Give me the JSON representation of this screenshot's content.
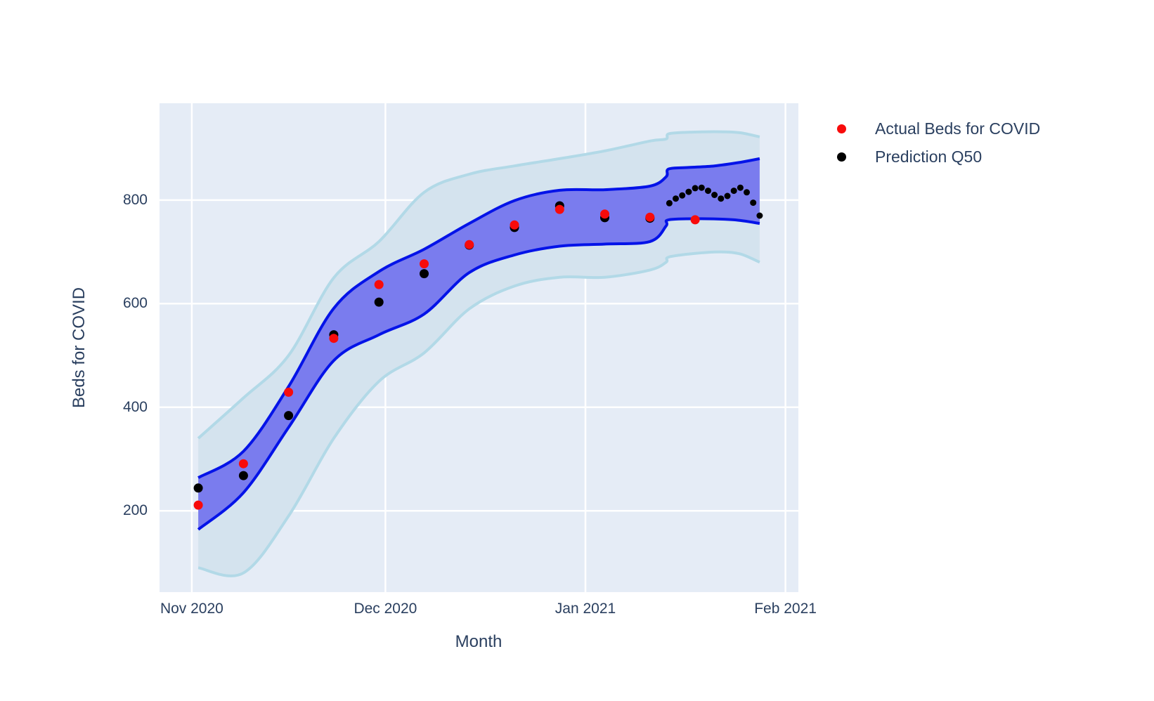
{
  "colors": {
    "paper_background": "#ffffff",
    "plot_background": "#e5ecf6",
    "gridline": "#ffffff",
    "text": "#2a3f5f",
    "actual_marker": "#f80b0b",
    "prediction_marker": "#000000",
    "inner_band_fill": "#7a7cee",
    "inner_band_line": "#0413e8",
    "outer_band_fill": "#d4e3ee",
    "outer_band_line": "#b2d9e7"
  },
  "chart_data": {
    "type": "scatter",
    "title": "",
    "xlabel": "Month",
    "ylabel": "Beds for COVID",
    "grid": true,
    "legend_position": "top-right-outside",
    "x_axis": {
      "tick_labels": [
        "Nov 2020",
        "Dec 2020",
        "Jan 2021",
        "Feb 2021"
      ],
      "tick_days_from_nov1": [
        0,
        30,
        61,
        92
      ],
      "range_days_from_nov1": [
        -5,
        94
      ]
    },
    "y_axis": {
      "tick_labels": [
        "200",
        "400",
        "600",
        "800"
      ],
      "tick_values": [
        200,
        400,
        600,
        800
      ],
      "range": [
        43,
        987
      ]
    },
    "legend": [
      {
        "label": "Actual Beds for COVID",
        "color": "#f80b0b"
      },
      {
        "label": "Prediction Q50",
        "color": "#000000"
      }
    ],
    "series": {
      "actual": {
        "name": "Actual Beds for COVID",
        "color": "#f80b0b",
        "points": [
          {
            "d": 1,
            "v": 211
          },
          {
            "d": 8,
            "v": 291
          },
          {
            "d": 15,
            "v": 429
          },
          {
            "d": 22,
            "v": 533
          },
          {
            "d": 29,
            "v": 637
          },
          {
            "d": 36,
            "v": 677
          },
          {
            "d": 43,
            "v": 714
          },
          {
            "d": 50,
            "v": 752
          },
          {
            "d": 57,
            "v": 782
          },
          {
            "d": 64,
            "v": 773
          },
          {
            "d": 71,
            "v": 767
          },
          {
            "d": 78,
            "v": 762
          }
        ]
      },
      "prediction_q50": {
        "name": "Prediction Q50",
        "color": "#000000",
        "weekly_points": [
          {
            "d": 1,
            "v": 244
          },
          {
            "d": 8,
            "v": 268
          },
          {
            "d": 15,
            "v": 384
          },
          {
            "d": 22,
            "v": 540
          },
          {
            "d": 29,
            "v": 603
          },
          {
            "d": 36,
            "v": 658
          },
          {
            "d": 43,
            "v": 713
          },
          {
            "d": 50,
            "v": 747
          },
          {
            "d": 57,
            "v": 789
          },
          {
            "d": 64,
            "v": 766
          },
          {
            "d": 71,
            "v": 765
          }
        ],
        "daily_points": [
          {
            "d": 74,
            "v": 794
          },
          {
            "d": 75,
            "v": 803
          },
          {
            "d": 76,
            "v": 809
          },
          {
            "d": 77,
            "v": 816
          },
          {
            "d": 78,
            "v": 823
          },
          {
            "d": 79,
            "v": 824
          },
          {
            "d": 80,
            "v": 818
          },
          {
            "d": 81,
            "v": 810
          },
          {
            "d": 82,
            "v": 803
          },
          {
            "d": 83,
            "v": 808
          },
          {
            "d": 84,
            "v": 818
          },
          {
            "d": 85,
            "v": 824
          },
          {
            "d": 86,
            "v": 815
          },
          {
            "d": 87,
            "v": 795
          },
          {
            "d": 88,
            "v": 770
          }
        ]
      },
      "inner_band": {
        "name": "inner prediction interval",
        "fill": "#7a7cee",
        "line": "#0413e8",
        "upper": [
          [
            1,
            264
          ],
          [
            8,
            315
          ],
          [
            15,
            440
          ],
          [
            22,
            591
          ],
          [
            29,
            662
          ],
          [
            36,
            705
          ],
          [
            43,
            755
          ],
          [
            50,
            799
          ],
          [
            57,
            819
          ],
          [
            64,
            820
          ],
          [
            71,
            827
          ],
          [
            73.5,
            845
          ],
          [
            73.9,
            860
          ],
          [
            77,
            863
          ],
          [
            81,
            866
          ],
          [
            85,
            873
          ],
          [
            88,
            880
          ]
        ],
        "lower": [
          [
            1,
            164
          ],
          [
            8,
            235
          ],
          [
            15,
            361
          ],
          [
            22,
            490
          ],
          [
            29,
            540
          ],
          [
            36,
            580
          ],
          [
            43,
            660
          ],
          [
            50,
            694
          ],
          [
            57,
            711
          ],
          [
            64,
            715
          ],
          [
            71,
            720
          ],
          [
            73.5,
            750
          ],
          [
            73.9,
            762
          ],
          [
            79,
            764
          ],
          [
            84,
            762
          ],
          [
            88,
            755
          ]
        ]
      },
      "outer_band": {
        "name": "outer prediction interval",
        "fill": "#d4e3ee",
        "line": "#b2d9e7",
        "upper": [
          [
            1,
            340
          ],
          [
            8,
            418
          ],
          [
            15,
            500
          ],
          [
            22,
            650
          ],
          [
            29,
            720
          ],
          [
            36,
            815
          ],
          [
            43,
            850
          ],
          [
            50,
            866
          ],
          [
            57,
            880
          ],
          [
            64,
            895
          ],
          [
            71,
            914
          ],
          [
            73.5,
            918
          ],
          [
            73.9,
            928
          ],
          [
            77,
            931
          ],
          [
            82,
            932
          ],
          [
            85,
            930
          ],
          [
            88,
            922
          ]
        ],
        "lower": [
          [
            1,
            90
          ],
          [
            8,
            80
          ],
          [
            15,
            190
          ],
          [
            22,
            340
          ],
          [
            29,
            450
          ],
          [
            36,
            505
          ],
          [
            43,
            590
          ],
          [
            50,
            634
          ],
          [
            57,
            651
          ],
          [
            64,
            651
          ],
          [
            71,
            665
          ],
          [
            73.5,
            680
          ],
          [
            73.9,
            690
          ],
          [
            78,
            697
          ],
          [
            82,
            700
          ],
          [
            85,
            696
          ],
          [
            88,
            680
          ]
        ]
      }
    }
  }
}
